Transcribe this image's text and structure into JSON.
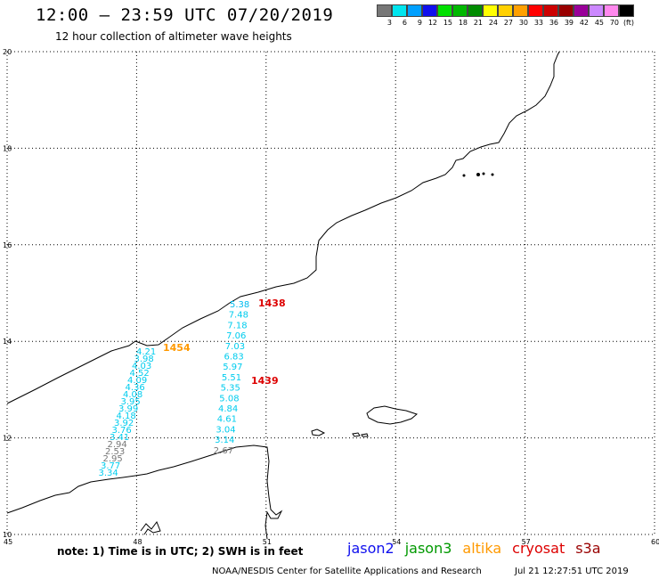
{
  "header": {
    "title": "12:00 – 23:59 UTC 07/20/2019",
    "subtitle": "12 hour collection of altimeter wave heights"
  },
  "legend": {
    "unit": "(ft)",
    "bins": [
      {
        "label": "3",
        "color": "#777777"
      },
      {
        "label": "6",
        "color": "#00e5ee"
      },
      {
        "label": "9",
        "color": "#00a0ff"
      },
      {
        "label": "12",
        "color": "#1010ee"
      },
      {
        "label": "15",
        "color": "#00e000"
      },
      {
        "label": "18",
        "color": "#00b800"
      },
      {
        "label": "21",
        "color": "#008c00"
      },
      {
        "label": "24",
        "color": "#ffff00"
      },
      {
        "label": "27",
        "color": "#ffd000"
      },
      {
        "label": "30",
        "color": "#ffa000"
      },
      {
        "label": "33",
        "color": "#ff0000"
      },
      {
        "label": "36",
        "color": "#cc0000"
      },
      {
        "label": "39",
        "color": "#990000"
      },
      {
        "label": "42",
        "color": "#990099"
      },
      {
        "label": "45",
        "color": "#cc88ff"
      },
      {
        "label": "70",
        "color": "#ff88ee"
      },
      {
        "label": "",
        "color": "#000000"
      }
    ]
  },
  "map": {
    "lon_ticks": [
      "45",
      "48",
      "51",
      "54",
      "57",
      "60"
    ],
    "lat_ticks": [
      "20",
      "18",
      "16",
      "14",
      "12",
      "10"
    ],
    "extent": {
      "lon": [
        45,
        60
      ],
      "lat": [
        10,
        20
      ]
    },
    "pass_times": [
      {
        "text": "1438",
        "color": "#dd0000"
      },
      {
        "text": "1454",
        "color": "#ff9900"
      },
      {
        "text": "1439",
        "color": "#dd0000"
      }
    ],
    "track_east": [
      {
        "v": "5.38",
        "c": "#00bbee"
      },
      {
        "v": "7.48",
        "c": "#00ccee"
      },
      {
        "v": "7.18",
        "c": "#00ccee"
      },
      {
        "v": "7.06",
        "c": "#00ccee"
      },
      {
        "v": "7.03",
        "c": "#00ccee"
      },
      {
        "v": "6.83",
        "c": "#00ccee"
      },
      {
        "v": "5.97",
        "c": "#00ccee"
      },
      {
        "v": "5.51",
        "c": "#00ccee"
      },
      {
        "v": "5.35",
        "c": "#00ccee"
      },
      {
        "v": "5.08",
        "c": "#00ccee"
      },
      {
        "v": "4.84",
        "c": "#00ccee"
      },
      {
        "v": "4.61",
        "c": "#00ccee"
      },
      {
        "v": "3.04",
        "c": "#00ccee"
      },
      {
        "v": "3.14",
        "c": "#00ccee"
      },
      {
        "v": "2.67",
        "c": "#777777"
      }
    ],
    "track_west": [
      {
        "v": "4.21",
        "c": "#00ccee"
      },
      {
        "v": "3.98",
        "c": "#00ccee"
      },
      {
        "v": "4.03",
        "c": "#00ccee"
      },
      {
        "v": "4.52",
        "c": "#00ccee"
      },
      {
        "v": "4.09",
        "c": "#00ccee"
      },
      {
        "v": "4.36",
        "c": "#00ccee"
      },
      {
        "v": "4.08",
        "c": "#00ccee"
      },
      {
        "v": "3.95",
        "c": "#00ccee"
      },
      {
        "v": "3.99",
        "c": "#00ccee"
      },
      {
        "v": "4.18",
        "c": "#00ccee"
      },
      {
        "v": "3.92",
        "c": "#00ccee"
      },
      {
        "v": "3.76",
        "c": "#00ccee"
      },
      {
        "v": "3.41",
        "c": "#00ccee"
      },
      {
        "v": "2.94",
        "c": "#777777"
      },
      {
        "v": "2.53",
        "c": "#777777"
      },
      {
        "v": "2.95",
        "c": "#777777"
      },
      {
        "v": "3.77",
        "c": "#00ccee"
      },
      {
        "v": "3.34",
        "c": "#00ccee"
      }
    ]
  },
  "note": "note: 1) Time is in UTC; 2) SWH is in feet",
  "satellites": [
    {
      "name": "jason2",
      "color": "#1010ee"
    },
    {
      "name": "jason3",
      "color": "#009900"
    },
    {
      "name": "altika",
      "color": "#ff9900"
    },
    {
      "name": "cryosat",
      "color": "#dd0000"
    },
    {
      "name": "s3a",
      "color": "#990000"
    }
  ],
  "footer": {
    "credit": "NOAA/NESDIS Center for Satellite Applications and Research",
    "timestamp": "Jul 21 12:27:51 UTC 2019"
  }
}
